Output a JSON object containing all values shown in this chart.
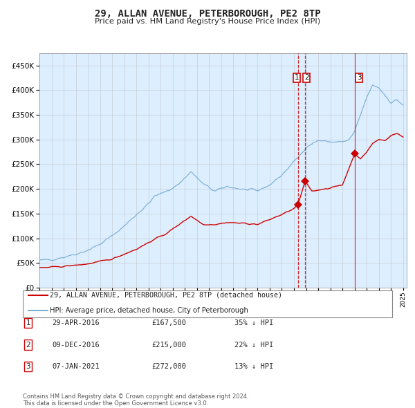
{
  "title": "29, ALLAN AVENUE, PETERBOROUGH, PE2 8TP",
  "subtitle": "Price paid vs. HM Land Registry's House Price Index (HPI)",
  "legend_line1": "29, ALLAN AVENUE, PETERBOROUGH, PE2 8TP (detached house)",
  "legend_line2": "HPI: Average price, detached house, City of Peterborough",
  "footer": "Contains HM Land Registry data © Crown copyright and database right 2024.\nThis data is licensed under the Open Government Licence v3.0.",
  "sale_color": "#cc0000",
  "hpi_color": "#7ab0d4",
  "background_color": "#ddeeff",
  "ylim": [
    0,
    475000
  ],
  "yticks": [
    0,
    50000,
    100000,
    150000,
    200000,
    250000,
    300000,
    350000,
    400000,
    450000
  ],
  "table_data": [
    {
      "num": "1",
      "date": "29-APR-2016",
      "price": "£167,500",
      "hpi": "35% ↓ HPI"
    },
    {
      "num": "2",
      "date": "09-DEC-2016",
      "price": "£215,000",
      "hpi": "22% ↓ HPI"
    },
    {
      "num": "3",
      "date": "07-JAN-2021",
      "price": "£272,000",
      "hpi": "13% ↓ HPI"
    }
  ],
  "sale_dates_num": [
    2016.33,
    2016.92,
    2021.02
  ],
  "sale_prices": [
    167500,
    215000,
    272000
  ],
  "hpi_anchors_x": [
    1995.0,
    1996.0,
    1997.0,
    1998.0,
    1999.0,
    2000.0,
    2001.0,
    2002.0,
    2003.0,
    2004.0,
    2004.5,
    2005.5,
    2006.5,
    2007.5,
    2008.5,
    2009.5,
    2010.5,
    2011.5,
    2012.0,
    2013.0,
    2014.0,
    2015.0,
    2016.0,
    2016.5,
    2017.0,
    2018.0,
    2019.0,
    2020.0,
    2020.5,
    2021.0,
    2021.5,
    2022.0,
    2022.5,
    2023.0,
    2023.5,
    2024.0,
    2024.5,
    2025.0
  ],
  "hpi_anchors_y": [
    55000,
    57000,
    62000,
    68000,
    76000,
    88000,
    105000,
    125000,
    148000,
    170000,
    185000,
    195000,
    210000,
    235000,
    210000,
    195000,
    205000,
    200000,
    198000,
    196000,
    208000,
    228000,
    255000,
    268000,
    285000,
    298000,
    295000,
    295000,
    298000,
    315000,
    350000,
    385000,
    410000,
    405000,
    390000,
    375000,
    380000,
    370000
  ],
  "red_anchors_x": [
    1995.0,
    1997.0,
    1999.0,
    2001.0,
    2003.0,
    2004.5,
    2005.5,
    2007.5,
    2008.5,
    2009.5,
    2010.5,
    2012.0,
    2013.0,
    2014.0,
    2015.0,
    2016.0,
    2016.33,
    2016.92,
    2017.5,
    2018.0,
    2019.0,
    2020.0,
    2021.02,
    2021.5,
    2022.0,
    2022.5,
    2023.0,
    2023.5,
    2024.0,
    2024.5,
    2025.0
  ],
  "red_anchors_y": [
    40000,
    43000,
    48000,
    58000,
    78000,
    98000,
    110000,
    145000,
    128000,
    128000,
    132000,
    130000,
    128000,
    138000,
    148000,
    160000,
    167500,
    215000,
    195000,
    198000,
    202000,
    208000,
    272000,
    260000,
    275000,
    292000,
    300000,
    298000,
    308000,
    312000,
    305000
  ]
}
